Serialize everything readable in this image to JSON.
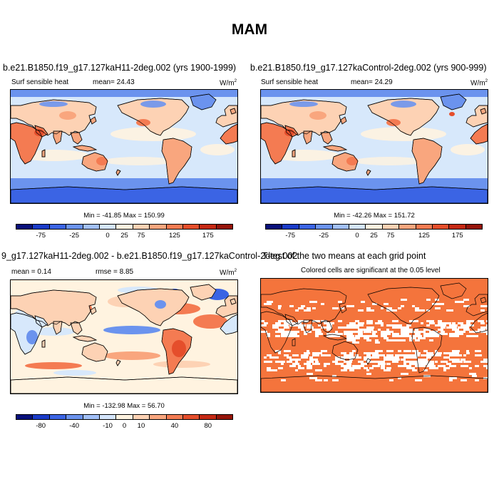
{
  "title": "MAM",
  "panels": {
    "p1": {
      "title": "b.e21.B1850.f19_g17.127kaH11-2deg.002 (yrs 1900-1999)",
      "variable": "Surf sensible heat",
      "stat": "mean=  24.43",
      "units": "W/m",
      "units_exp": "2",
      "minmax": "Min = -41.85 Max = 150.99"
    },
    "p2": {
      "title": "b.e21.B1850.f19_g17.127kaControl-2deg.002 (yrs 900-999)",
      "variable": "Surf sensible heat",
      "stat": "mean=  24.29",
      "units": "W/m",
      "units_exp": "2",
      "minmax": "Min = -42.26 Max = 151.72"
    },
    "p3": {
      "title": "9_g17.127kaH11-2deg.002 - b.e21.B1850.f19_g17.127kaControl-2deg.002",
      "stat_mean": "mean =  0.14",
      "stat_rmse": "rmse =  8.85",
      "units": "W/m",
      "units_exp": "2",
      "minmax": "Min = -132.98 Max = 56.70"
    },
    "p4": {
      "title": "T-test of the two means at each grid point",
      "subtitle": "Colored cells are significant at the 0.05 level",
      "significant_color": "#f4743c"
    }
  },
  "colorbars": {
    "abs": {
      "colors": [
        "#08107a",
        "#1a3bc8",
        "#3b64e4",
        "#6b93ee",
        "#a2c0f8",
        "#d4e5fc",
        "#fff3e0",
        "#fdd2b4",
        "#f9a67e",
        "#f47b52",
        "#e54e2b",
        "#c52914",
        "#96150a"
      ],
      "ticks": [
        "-75",
        "-25",
        "0",
        "25",
        "75",
        "125",
        "175"
      ]
    },
    "diff": {
      "colors": [
        "#08107a",
        "#1a3bc8",
        "#3b64e4",
        "#6b93ee",
        "#a2c0f8",
        "#d4e5fc",
        "#fff3e0",
        "#fdd2b4",
        "#f9a67e",
        "#f47b52",
        "#e54e2b",
        "#c52914",
        "#96150a"
      ],
      "ticks": [
        "-80",
        "-40",
        "-10",
        "0",
        "10",
        "40",
        "80"
      ]
    }
  },
  "map_colors": {
    "ocean_base": "#d7e8fb",
    "ocean_pale": "#fff3e0",
    "ocean_pink": "#fdd2b4",
    "ocean_dark": "#3b64e4",
    "ice": "#6b93ee",
    "land_main": "#f9a67e",
    "land_hot": "#f47b52",
    "land_light": "#fdd2b4",
    "cold": "#6b93ee",
    "cold_deep": "#3b64e4",
    "coast": "#000000"
  }
}
